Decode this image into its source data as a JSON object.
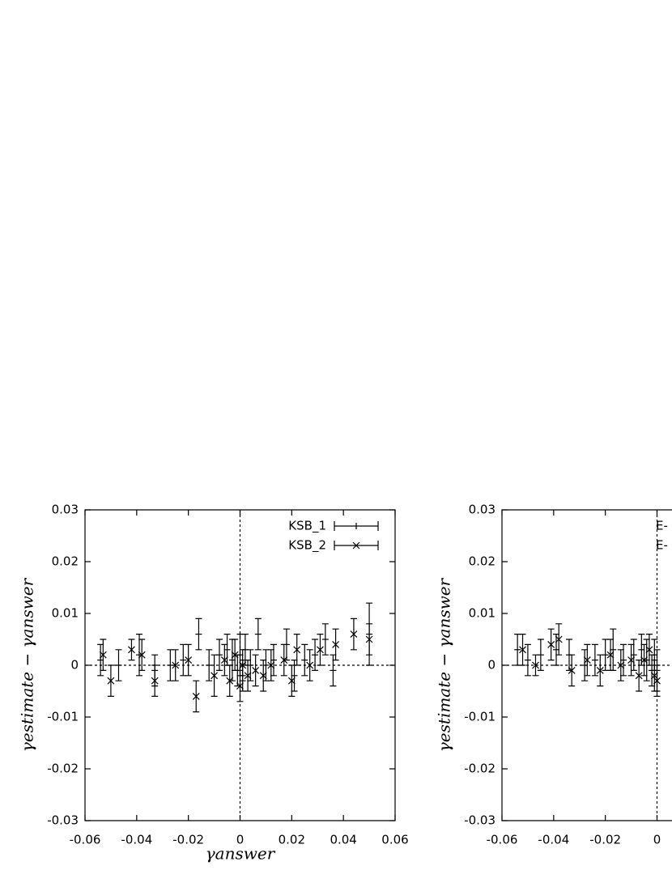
{
  "chart_data": [
    {
      "type": "scatter",
      "xlabel": "γanswer",
      "ylabel": "γestimate − γanswer",
      "xlim": [
        -0.06,
        0.06
      ],
      "ylim": [
        -0.03,
        0.03
      ],
      "xticks": [
        -0.06,
        -0.04,
        -0.02,
        0,
        0.02,
        0.04,
        0.06
      ],
      "yticks": [
        -0.03,
        -0.02,
        -0.01,
        0,
        0.01,
        0.02,
        0.03
      ],
      "legend": "upper right",
      "color": "#000000",
      "series": [
        {
          "name": "KSB_1",
          "marker": "plus",
          "x": [
            -0.054,
            -0.047,
            -0.039,
            -0.033,
            -0.027,
            -0.022,
            -0.016,
            -0.012,
            -0.008,
            -0.005,
            -0.003,
            -0.001,
            0.0,
            0.001,
            0.002,
            0.004,
            0.007,
            0.01,
            0.013,
            0.018,
            0.021,
            0.025,
            0.029,
            0.033,
            0.036,
            0.05
          ],
          "values": [
            0.001,
            0.0,
            0.002,
            -0.001,
            0.0,
            0.001,
            0.006,
            0.0,
            0.002,
            0.003,
            0.001,
            -0.001,
            0.002,
            -0.002,
            0.003,
            0.0,
            0.006,
            0.0,
            0.001,
            0.004,
            -0.002,
            0.001,
            0.002,
            0.005,
            -0.001,
            0.006
          ],
          "errors": [
            0.003,
            0.003,
            0.004,
            0.003,
            0.003,
            0.003,
            0.003,
            0.003,
            0.003,
            0.003,
            0.004,
            0.003,
            0.004,
            0.003,
            0.003,
            0.003,
            0.003,
            0.003,
            0.003,
            0.003,
            0.003,
            0.003,
            0.003,
            0.003,
            0.003,
            0.006
          ]
        },
        {
          "name": "KSB_2",
          "marker": "cross",
          "x": [
            -0.053,
            -0.05,
            -0.042,
            -0.038,
            -0.033,
            -0.025,
            -0.02,
            -0.017,
            -0.01,
            -0.006,
            -0.004,
            -0.002,
            0.0,
            0.001,
            0.003,
            0.006,
            0.009,
            0.012,
            0.017,
            0.02,
            0.022,
            0.027,
            0.031,
            0.037,
            0.044,
            0.05
          ],
          "values": [
            0.002,
            -0.003,
            0.003,
            0.002,
            -0.003,
            0.0,
            0.001,
            -0.006,
            -0.002,
            0.001,
            -0.003,
            0.002,
            -0.004,
            0.0,
            -0.002,
            -0.001,
            -0.002,
            0.0,
            0.001,
            -0.003,
            0.003,
            0.0,
            0.003,
            0.004,
            0.006,
            0.005
          ],
          "errors": [
            0.003,
            0.003,
            0.002,
            0.003,
            0.003,
            0.003,
            0.003,
            0.003,
            0.004,
            0.003,
            0.003,
            0.003,
            0.003,
            0.003,
            0.003,
            0.003,
            0.003,
            0.003,
            0.003,
            0.003,
            0.003,
            0.003,
            0.003,
            0.003,
            0.003,
            0.003
          ]
        }
      ]
    },
    {
      "type": "scatter",
      "ylabel": "γestimate − γanswer",
      "xlim": [
        -0.06,
        0.06
      ],
      "ylim": [
        -0.03,
        0.03
      ],
      "xticks": [
        -0.06,
        -0.04,
        -0.02,
        0
      ],
      "yticks": [
        -0.03,
        -0.02,
        -0.01,
        0,
        0.01,
        0.02,
        0.03
      ],
      "legend": "upper right",
      "color": "#000000",
      "series": [
        {
          "name": "E-",
          "marker": "plus",
          "x": [
            -0.054,
            -0.05,
            -0.045,
            -0.039,
            -0.034,
            -0.028,
            -0.024,
            -0.02,
            -0.017,
            -0.013,
            -0.009,
            -0.006,
            -0.004,
            -0.002,
            -0.001,
            0.0
          ],
          "values": [
            0.003,
            0.001,
            0.002,
            0.003,
            0.002,
            0.0,
            0.001,
            0.002,
            0.003,
            0.001,
            0.002,
            0.003,
            0.001,
            -0.001,
            0.002,
            -0.001
          ],
          "errors": [
            0.003,
            0.003,
            0.003,
            0.003,
            0.003,
            0.003,
            0.003,
            0.003,
            0.004,
            0.003,
            0.003,
            0.003,
            0.004,
            0.003,
            0.003,
            0.004
          ]
        },
        {
          "name": "E-",
          "marker": "cross",
          "x": [
            -0.052,
            -0.047,
            -0.041,
            -0.038,
            -0.033,
            -0.027,
            -0.022,
            -0.018,
            -0.014,
            -0.01,
            -0.007,
            -0.005,
            -0.003,
            -0.001,
            0.0
          ],
          "values": [
            0.003,
            0.0,
            0.004,
            0.005,
            -0.001,
            0.001,
            -0.001,
            0.002,
            0.0,
            0.001,
            -0.002,
            0.001,
            0.003,
            -0.002,
            -0.003
          ],
          "errors": [
            0.003,
            0.002,
            0.003,
            0.003,
            0.003,
            0.003,
            0.003,
            0.003,
            0.003,
            0.003,
            0.003,
            0.003,
            0.003,
            0.003,
            0.003
          ]
        }
      ]
    }
  ]
}
